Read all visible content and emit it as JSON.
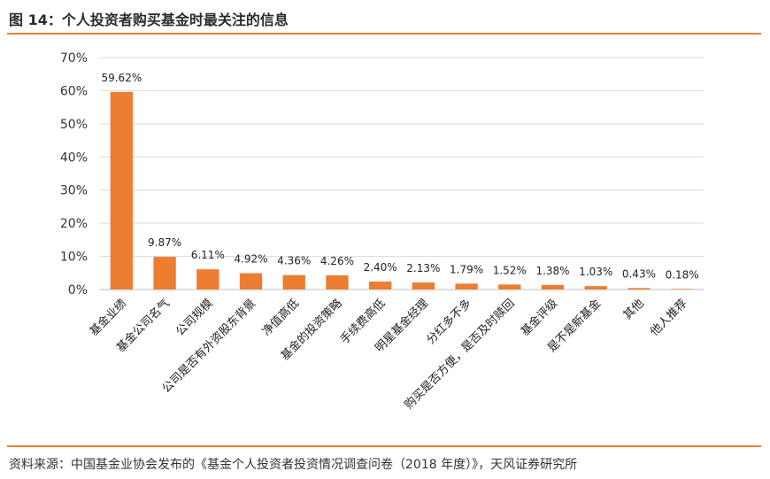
{
  "figure": {
    "title": "图 14：个人投资者购买基金时最关注的信息",
    "source": "资料来源：中国基金业协会发布的《基金个人投资者投资情况调查问卷（2018 年度）》，天风证券研究所"
  },
  "chart_data": {
    "type": "bar",
    "title": "",
    "xlabel": "",
    "ylabel": "",
    "ylim": [
      0,
      70
    ],
    "yticks": [
      "0%",
      "10%",
      "20%",
      "30%",
      "40%",
      "50%",
      "60%",
      "70%"
    ],
    "grid": true,
    "bar_color": "#ed7d31",
    "categories": [
      "基金业绩",
      "基金公司名气",
      "公司规模",
      "公司是否有外资股东背景",
      "净值高低",
      "基金的投资策略",
      "手续费高低",
      "明星基金经理",
      "分红多不多",
      "购买是否方便，是否及时赎回",
      "基金评级",
      "是不是新基金",
      "其他",
      "他人推荐"
    ],
    "values": [
      59.62,
      9.87,
      6.11,
      4.92,
      4.36,
      4.26,
      2.4,
      2.13,
      1.79,
      1.52,
      1.38,
      1.03,
      0.43,
      0.18
    ],
    "value_labels": [
      "59.62%",
      "9.87%",
      "6.11%",
      "4.92%",
      "4.36%",
      "4.26%",
      "2.40%",
      "2.13%",
      "1.79%",
      "1.52%",
      "1.38%",
      "1.03%",
      "0.43%",
      "0.18%"
    ]
  }
}
